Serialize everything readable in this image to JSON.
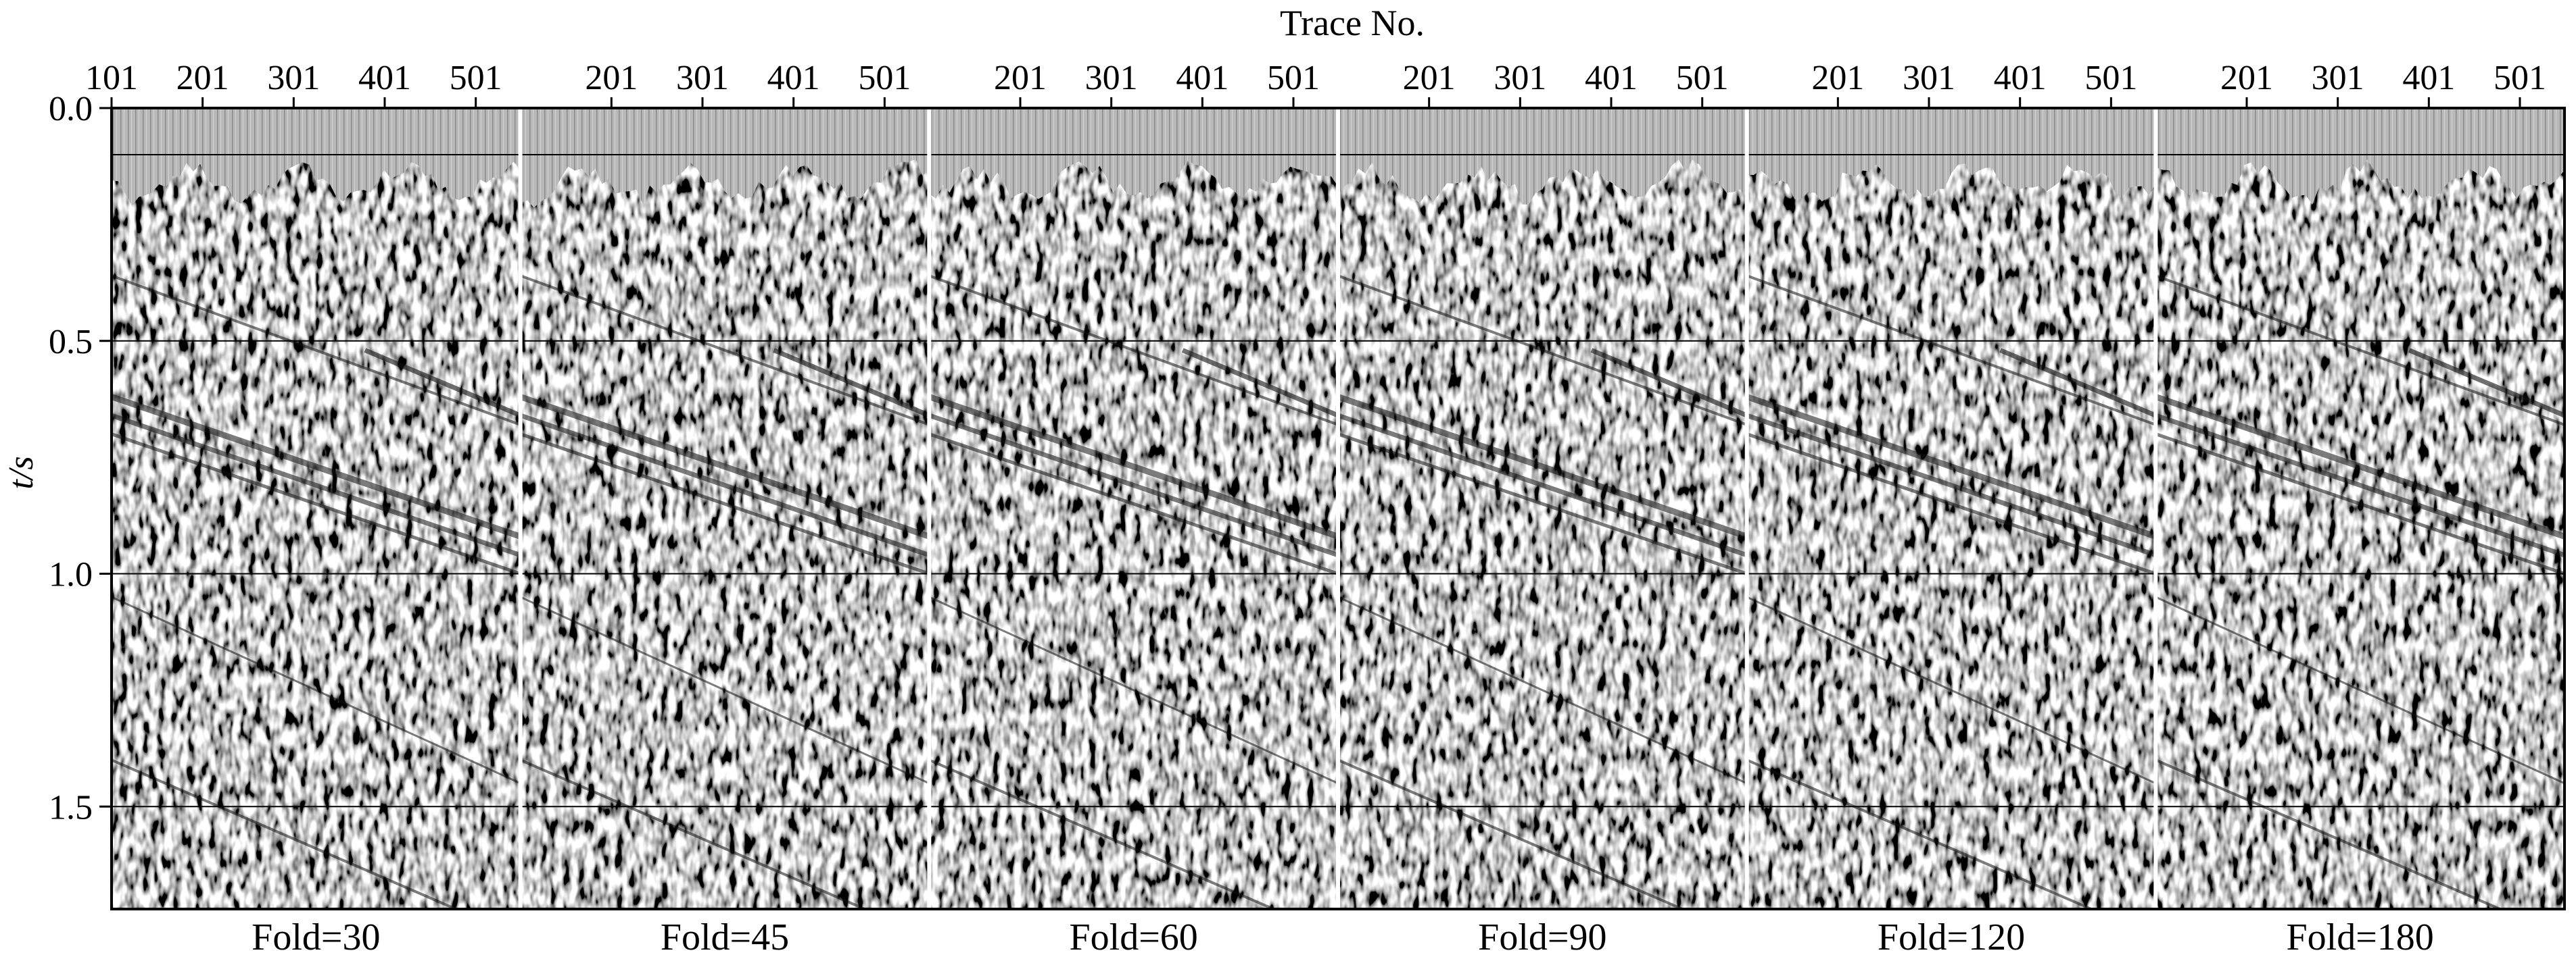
{
  "chart_data": {
    "type": "heatmap",
    "description_free": true,
    "x_axis_title": "Trace No.",
    "y_axis_label": "t/s",
    "y_range": [
      0.0,
      1.72
    ],
    "y_ticks": [
      "0.0",
      "0.5",
      "1.0",
      "1.5"
    ],
    "y_tick_values": [
      0.0,
      0.5,
      1.0,
      1.5
    ],
    "x_range_per_panel": [
      101,
      550
    ],
    "panels": [
      {
        "label": "Fold=30",
        "x_ticks": [
          "101",
          "201",
          "301",
          "401",
          "501"
        ],
        "x_tick_values": [
          101,
          201,
          301,
          401,
          501
        ]
      },
      {
        "label": "Fold=45",
        "x_ticks": [
          "201",
          "301",
          "401",
          "501"
        ],
        "x_tick_values": [
          201,
          301,
          401,
          501
        ]
      },
      {
        "label": "Fold=60",
        "x_ticks": [
          "201",
          "301",
          "401",
          "501"
        ],
        "x_tick_values": [
          201,
          301,
          401,
          501
        ]
      },
      {
        "label": "Fold=90",
        "x_ticks": [
          "201",
          "301",
          "401",
          "501"
        ],
        "x_tick_values": [
          201,
          301,
          401,
          501
        ]
      },
      {
        "label": "Fold=120",
        "x_ticks": [
          "201",
          "301",
          "401",
          "501"
        ],
        "x_tick_values": [
          201,
          301,
          401,
          501
        ]
      },
      {
        "label": "Fold=180",
        "x_ticks": [
          "201",
          "301",
          "401",
          "501"
        ],
        "x_tick_values": [
          201,
          301,
          401,
          501
        ]
      }
    ],
    "grid_lines_t": [
      0.1,
      0.5,
      1.0,
      1.5
    ],
    "colormap": "grayscale"
  },
  "colors": {
    "background": "#ffffff",
    "frame": "#000000",
    "panel_separator": "#ffffff",
    "muted_zone": "#b4b4b4"
  }
}
